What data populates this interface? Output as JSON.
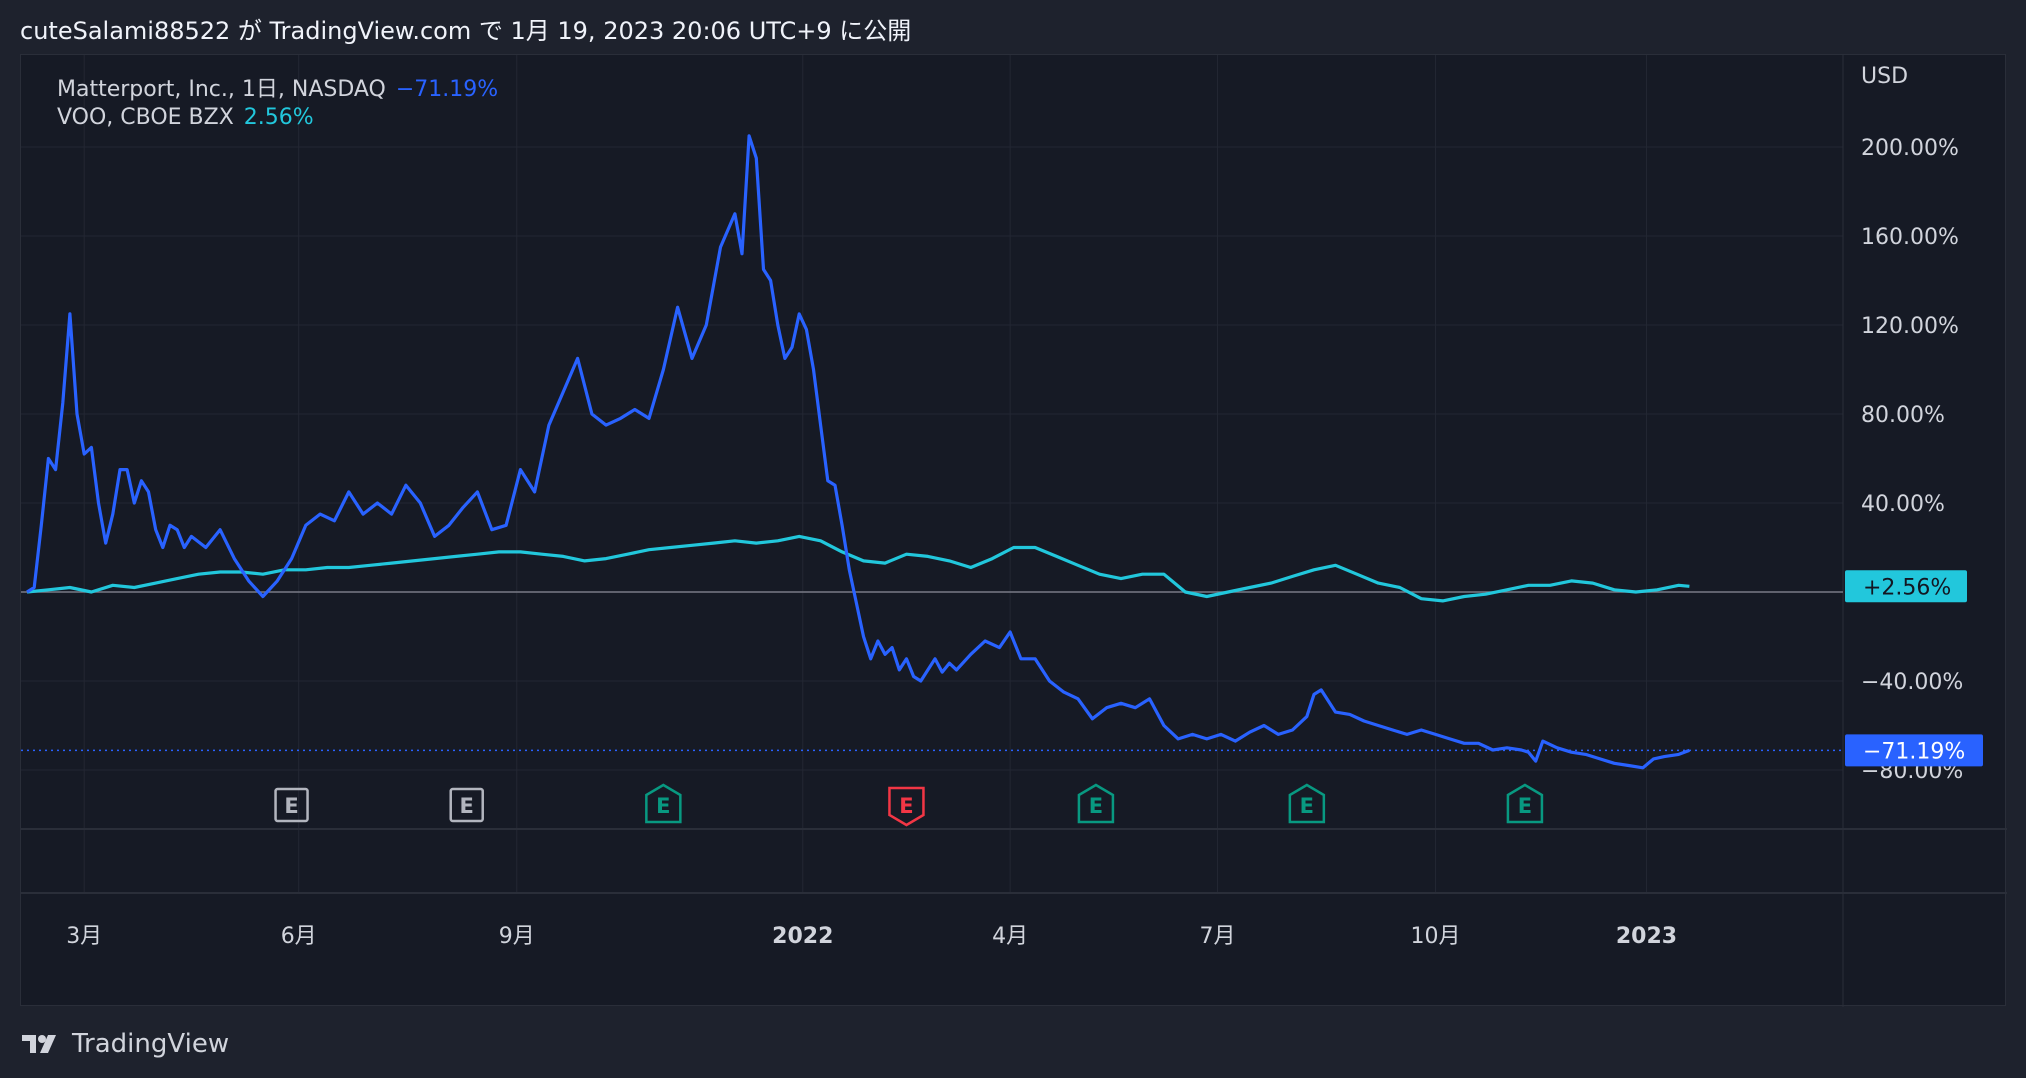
{
  "header": {
    "publish_line": "cuteSalami88522 が TradingView.com で 1月 19, 2023 20:06 UTC+9 に公開"
  },
  "footer": {
    "brand": "TradingView"
  },
  "colors": {
    "background": "#1e222d",
    "pane": "#161a25",
    "matterport": "#2962ff",
    "voo": "#22c7dc",
    "earnings_neutral": "#b2b5be",
    "earnings_green": "#089981",
    "earnings_red": "#f23645"
  },
  "chart_data": {
    "type": "line",
    "currency_label": "USD",
    "y_unit": "%",
    "ylim": [
      -80,
      210
    ],
    "y_ticks": [
      "200.00%",
      "160.00%",
      "120.00%",
      "80.00%",
      "40.00%",
      "-40.00%",
      "-80.00%"
    ],
    "x_ticks": [
      {
        "label": "3月",
        "t": 0.8,
        "bold": false
      },
      {
        "label": "6月",
        "t": 3.8,
        "bold": false
      },
      {
        "label": "9月",
        "t": 6.85,
        "bold": false
      },
      {
        "label": "2022",
        "t": 10.85,
        "bold": true
      },
      {
        "label": "4月",
        "t": 13.75,
        "bold": false
      },
      {
        "label": "7月",
        "t": 16.65,
        "bold": false
      },
      {
        "label": "10月",
        "t": 19.7,
        "bold": false
      },
      {
        "label": "2023",
        "t": 22.65,
        "bold": true
      }
    ],
    "earnings_markers": [
      {
        "label": "E",
        "t": 3.7,
        "status": "neutral"
      },
      {
        "label": "E",
        "t": 6.15,
        "status": "neutral"
      },
      {
        "label": "E",
        "t": 8.9,
        "status": "green"
      },
      {
        "label": "E",
        "t": 12.3,
        "status": "red"
      },
      {
        "label": "E",
        "t": 14.95,
        "status": "green"
      },
      {
        "label": "E",
        "t": 17.9,
        "status": "green"
      },
      {
        "label": "E",
        "t": 20.95,
        "status": "green"
      }
    ],
    "series": [
      {
        "name": "Matterport, Inc., 1日, NASDAQ",
        "last_value": "−71.19%",
        "last_label": "−71.19%",
        "color_key": "matterport",
        "points": [
          [
            0,
            0
          ],
          [
            0.1,
            2
          ],
          [
            0.2,
            30
          ],
          [
            0.3,
            60
          ],
          [
            0.4,
            55
          ],
          [
            0.5,
            85
          ],
          [
            0.6,
            125
          ],
          [
            0.7,
            80
          ],
          [
            0.8,
            62
          ],
          [
            0.9,
            65
          ],
          [
            1.0,
            40
          ],
          [
            1.1,
            22
          ],
          [
            1.2,
            35
          ],
          [
            1.3,
            55
          ],
          [
            1.4,
            55
          ],
          [
            1.5,
            40
          ],
          [
            1.6,
            50
          ],
          [
            1.7,
            45
          ],
          [
            1.8,
            28
          ],
          [
            1.9,
            20
          ],
          [
            2.0,
            30
          ],
          [
            2.1,
            28
          ],
          [
            2.2,
            20
          ],
          [
            2.3,
            25
          ],
          [
            2.5,
            20
          ],
          [
            2.7,
            28
          ],
          [
            2.9,
            15
          ],
          [
            3.1,
            5
          ],
          [
            3.3,
            -2
          ],
          [
            3.5,
            5
          ],
          [
            3.7,
            15
          ],
          [
            3.9,
            30
          ],
          [
            4.1,
            35
          ],
          [
            4.3,
            32
          ],
          [
            4.5,
            45
          ],
          [
            4.7,
            35
          ],
          [
            4.9,
            40
          ],
          [
            5.1,
            35
          ],
          [
            5.3,
            48
          ],
          [
            5.5,
            40
          ],
          [
            5.7,
            25
          ],
          [
            5.9,
            30
          ],
          [
            6.1,
            38
          ],
          [
            6.3,
            45
          ],
          [
            6.5,
            28
          ],
          [
            6.7,
            30
          ],
          [
            6.9,
            55
          ],
          [
            7.1,
            45
          ],
          [
            7.3,
            75
          ],
          [
            7.5,
            90
          ],
          [
            7.7,
            105
          ],
          [
            7.9,
            80
          ],
          [
            8.1,
            75
          ],
          [
            8.3,
            78
          ],
          [
            8.5,
            82
          ],
          [
            8.7,
            78
          ],
          [
            8.9,
            100
          ],
          [
            9.1,
            128
          ],
          [
            9.3,
            105
          ],
          [
            9.5,
            120
          ],
          [
            9.7,
            155
          ],
          [
            9.9,
            170
          ],
          [
            10.0,
            152
          ],
          [
            10.1,
            205
          ],
          [
            10.2,
            195
          ],
          [
            10.3,
            145
          ],
          [
            10.4,
            140
          ],
          [
            10.5,
            120
          ],
          [
            10.6,
            105
          ],
          [
            10.7,
            110
          ],
          [
            10.8,
            125
          ],
          [
            10.9,
            118
          ],
          [
            11.0,
            100
          ],
          [
            11.1,
            75
          ],
          [
            11.2,
            50
          ],
          [
            11.3,
            48
          ],
          [
            11.4,
            30
          ],
          [
            11.5,
            10
          ],
          [
            11.6,
            -5
          ],
          [
            11.7,
            -20
          ],
          [
            11.8,
            -30
          ],
          [
            11.9,
            -22
          ],
          [
            12.0,
            -28
          ],
          [
            12.1,
            -25
          ],
          [
            12.2,
            -35
          ],
          [
            12.3,
            -30
          ],
          [
            12.4,
            -38
          ],
          [
            12.5,
            -40
          ],
          [
            12.6,
            -35
          ],
          [
            12.7,
            -30
          ],
          [
            12.8,
            -36
          ],
          [
            12.9,
            -32
          ],
          [
            13.0,
            -35
          ],
          [
            13.2,
            -28
          ],
          [
            13.4,
            -22
          ],
          [
            13.6,
            -25
          ],
          [
            13.75,
            -18
          ],
          [
            13.9,
            -30
          ],
          [
            14.1,
            -30
          ],
          [
            14.3,
            -40
          ],
          [
            14.5,
            -45
          ],
          [
            14.7,
            -48
          ],
          [
            14.9,
            -57
          ],
          [
            15.1,
            -52
          ],
          [
            15.3,
            -50
          ],
          [
            15.5,
            -52
          ],
          [
            15.7,
            -48
          ],
          [
            15.9,
            -60
          ],
          [
            16.1,
            -66
          ],
          [
            16.3,
            -64
          ],
          [
            16.5,
            -66
          ],
          [
            16.7,
            -64
          ],
          [
            16.9,
            -67
          ],
          [
            17.1,
            -63
          ],
          [
            17.3,
            -60
          ],
          [
            17.5,
            -64
          ],
          [
            17.7,
            -62
          ],
          [
            17.9,
            -56
          ],
          [
            18.0,
            -46
          ],
          [
            18.1,
            -44
          ],
          [
            18.3,
            -54
          ],
          [
            18.5,
            -55
          ],
          [
            18.7,
            -58
          ],
          [
            18.9,
            -60
          ],
          [
            19.1,
            -62
          ],
          [
            19.3,
            -64
          ],
          [
            19.5,
            -62
          ],
          [
            19.7,
            -64
          ],
          [
            19.9,
            -66
          ],
          [
            20.1,
            -68
          ],
          [
            20.3,
            -68
          ],
          [
            20.5,
            -71
          ],
          [
            20.7,
            -70
          ],
          [
            20.9,
            -71
          ],
          [
            21.0,
            -72
          ],
          [
            21.1,
            -76
          ],
          [
            21.2,
            -67
          ],
          [
            21.4,
            -70
          ],
          [
            21.6,
            -72
          ],
          [
            21.8,
            -73
          ],
          [
            22.0,
            -75
          ],
          [
            22.2,
            -77
          ],
          [
            22.4,
            -78
          ],
          [
            22.6,
            -79
          ],
          [
            22.75,
            -75
          ],
          [
            22.9,
            -74
          ],
          [
            23.1,
            -73
          ],
          [
            23.25,
            -71.2
          ]
        ]
      },
      {
        "name": "VOO, CBOE BZX",
        "last_value": "2.56%",
        "last_label": "+2.56%",
        "color_key": "voo",
        "points": [
          [
            0,
            0
          ],
          [
            0.3,
            1
          ],
          [
            0.6,
            2
          ],
          [
            0.9,
            0
          ],
          [
            1.2,
            3
          ],
          [
            1.5,
            2
          ],
          [
            1.8,
            4
          ],
          [
            2.1,
            6
          ],
          [
            2.4,
            8
          ],
          [
            2.7,
            9
          ],
          [
            3.0,
            9
          ],
          [
            3.3,
            8
          ],
          [
            3.6,
            10
          ],
          [
            3.9,
            10
          ],
          [
            4.2,
            11
          ],
          [
            4.5,
            11
          ],
          [
            4.8,
            12
          ],
          [
            5.1,
            13
          ],
          [
            5.4,
            14
          ],
          [
            5.7,
            15
          ],
          [
            6.0,
            16
          ],
          [
            6.3,
            17
          ],
          [
            6.6,
            18
          ],
          [
            6.9,
            18
          ],
          [
            7.2,
            17
          ],
          [
            7.5,
            16
          ],
          [
            7.8,
            14
          ],
          [
            8.1,
            15
          ],
          [
            8.4,
            17
          ],
          [
            8.7,
            19
          ],
          [
            9.0,
            20
          ],
          [
            9.3,
            21
          ],
          [
            9.6,
            22
          ],
          [
            9.9,
            23
          ],
          [
            10.2,
            22
          ],
          [
            10.5,
            23
          ],
          [
            10.8,
            25
          ],
          [
            11.1,
            23
          ],
          [
            11.4,
            18
          ],
          [
            11.7,
            14
          ],
          [
            12.0,
            13
          ],
          [
            12.3,
            17
          ],
          [
            12.6,
            16
          ],
          [
            12.9,
            14
          ],
          [
            13.2,
            11
          ],
          [
            13.5,
            15
          ],
          [
            13.8,
            20
          ],
          [
            14.1,
            20
          ],
          [
            14.4,
            16
          ],
          [
            14.7,
            12
          ],
          [
            15.0,
            8
          ],
          [
            15.3,
            6
          ],
          [
            15.6,
            8
          ],
          [
            15.9,
            8
          ],
          [
            16.2,
            0
          ],
          [
            16.5,
            -2
          ],
          [
            16.8,
            0
          ],
          [
            17.1,
            2
          ],
          [
            17.4,
            4
          ],
          [
            17.7,
            7
          ],
          [
            18.0,
            10
          ],
          [
            18.3,
            12
          ],
          [
            18.6,
            8
          ],
          [
            18.9,
            4
          ],
          [
            19.2,
            2
          ],
          [
            19.5,
            -3
          ],
          [
            19.8,
            -4
          ],
          [
            20.1,
            -2
          ],
          [
            20.4,
            -1
          ],
          [
            20.7,
            1
          ],
          [
            21.0,
            3
          ],
          [
            21.3,
            3
          ],
          [
            21.6,
            5
          ],
          [
            21.9,
            4
          ],
          [
            22.2,
            1
          ],
          [
            22.5,
            0
          ],
          [
            22.8,
            1
          ],
          [
            23.1,
            3
          ],
          [
            23.25,
            2.56
          ]
        ]
      }
    ]
  }
}
